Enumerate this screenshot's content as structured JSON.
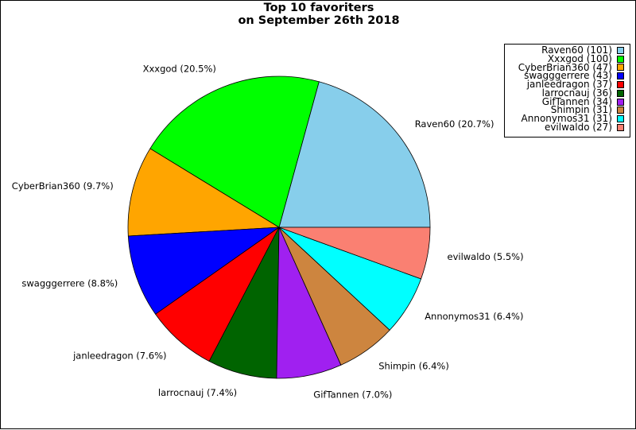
{
  "title_lines": [
    "Top 10 favoriters",
    "on September 26th 2018"
  ],
  "chart_data": {
    "type": "pie",
    "title": "Top 10 favoriters on September 26th 2018",
    "start_angle_deg": 0,
    "direction": "counterclockwise",
    "legend_position": "top-right",
    "slices": [
      {
        "name": "Raven60",
        "value": 101,
        "percent": "20.7%",
        "color": "#87ceeb",
        "legend": "Raven60 (101)",
        "label": "Raven60 (20.7%)"
      },
      {
        "name": "Xxxgod",
        "value": 100,
        "percent": "20.5%",
        "color": "#00ff00",
        "legend": "Xxxgod (100)",
        "label": "Xxxgod (20.5%)"
      },
      {
        "name": "CyberBrian360",
        "value": 47,
        "percent": "9.7%",
        "color": "#ffa500",
        "legend": "CyberBrian360 (47)",
        "label": "CyberBrian360 (9.7%)"
      },
      {
        "name": "swagggerrere",
        "value": 43,
        "percent": "8.8%",
        "color": "#0000ff",
        "legend": "swagggerrere (43)",
        "label": "swagggerrere (8.8%)"
      },
      {
        "name": "janleedragon",
        "value": 37,
        "percent": "7.6%",
        "color": "#ff0000",
        "legend": "janleedragon (37)",
        "label": "janleedragon (7.6%)"
      },
      {
        "name": "larrocnauj",
        "value": 36,
        "percent": "7.4%",
        "color": "#006400",
        "legend": "larrocnauj (36)",
        "label": "larrocnauj (7.4%)"
      },
      {
        "name": "GifTannen",
        "value": 34,
        "percent": "7.0%",
        "color": "#a020f0",
        "legend": "GifTannen (34)",
        "label": "GifTannen (7.0%)"
      },
      {
        "name": "Shimpin",
        "value": 31,
        "percent": "6.4%",
        "color": "#cd853f",
        "legend": "Shimpin (31)",
        "label": "Shimpin (6.4%)"
      },
      {
        "name": "Annonymos31",
        "value": 31,
        "percent": "6.4%",
        "color": "#00ffff",
        "legend": "Annonymos31 (31)",
        "label": "Annonymos31 (6.4%)"
      },
      {
        "name": "evilwaldo",
        "value": 27,
        "percent": "5.5%",
        "color": "#fa8072",
        "legend": "evilwaldo (27)",
        "label": "evilwaldo (5.5%)"
      }
    ]
  }
}
